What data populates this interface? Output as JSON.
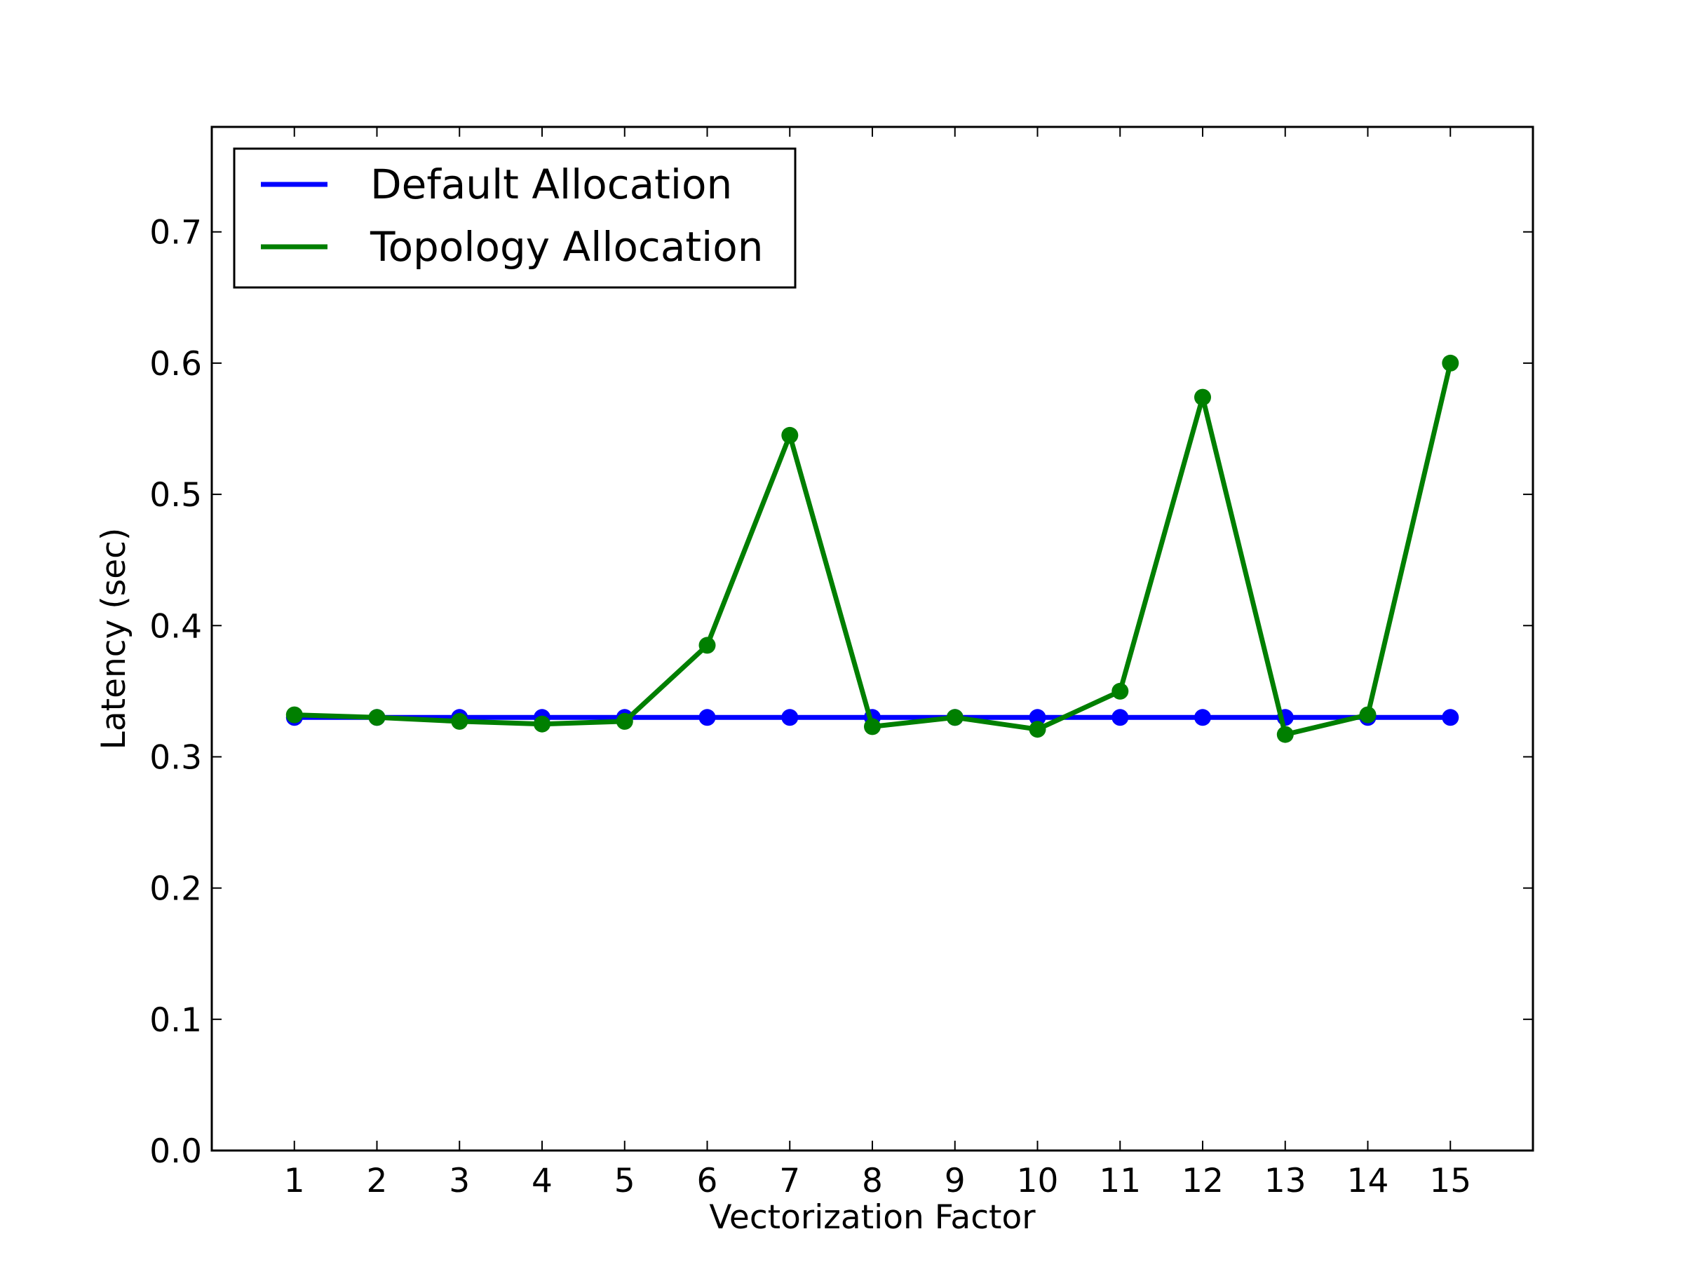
{
  "chart_data": {
    "type": "line",
    "title": "",
    "xlabel": "Vectorization Factor",
    "ylabel": "Latency (sec)",
    "x": [
      1,
      2,
      3,
      4,
      5,
      6,
      7,
      8,
      9,
      10,
      11,
      12,
      13,
      14,
      15
    ],
    "x_tick_labels": [
      "1",
      "2",
      "3",
      "4",
      "5",
      "6",
      "7",
      "8",
      "9",
      "10",
      "11",
      "12",
      "13",
      "14",
      "15"
    ],
    "xlim": [
      0,
      16
    ],
    "ylim": [
      0.0,
      0.78
    ],
    "y_ticks": [
      0.0,
      0.1,
      0.2,
      0.3,
      0.4,
      0.5,
      0.6,
      0.7
    ],
    "y_tick_labels": [
      "0.0",
      "0.1",
      "0.2",
      "0.3",
      "0.4",
      "0.5",
      "0.6",
      "0.7"
    ],
    "grid": false,
    "legend_position": "top-left",
    "series": [
      {
        "name": "Default Allocation",
        "color": "#0000ff",
        "marker": "circle",
        "values": [
          0.33,
          0.33,
          0.33,
          0.33,
          0.33,
          0.33,
          0.33,
          0.33,
          0.33,
          0.33,
          0.33,
          0.33,
          0.33,
          0.33,
          0.33
        ]
      },
      {
        "name": "Topology Allocation",
        "color": "#007f00",
        "marker": "circle",
        "values": [
          0.332,
          0.33,
          0.327,
          0.325,
          0.327,
          0.385,
          0.545,
          0.323,
          0.33,
          0.321,
          0.35,
          0.574,
          0.317,
          0.332,
          0.6
        ]
      }
    ]
  }
}
